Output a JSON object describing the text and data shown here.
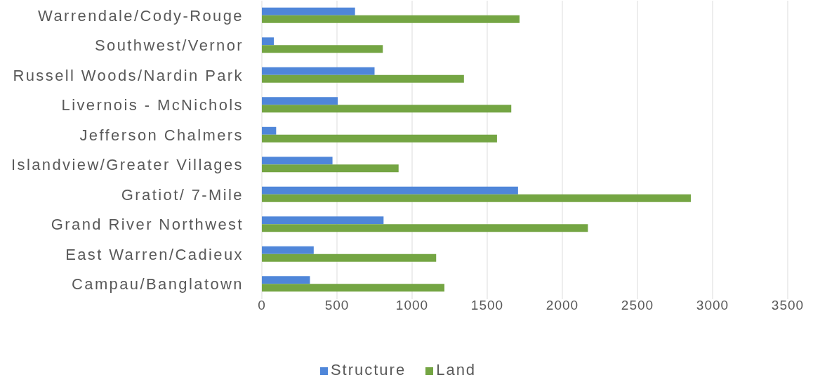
{
  "chart_data": {
    "type": "bar",
    "orientation": "horizontal",
    "categories": [
      "Warrendale/Cody-Rouge",
      "Southwest/Vernor",
      "Russell Woods/Nardin Park",
      "Livernois - McNichols",
      "Jefferson Chalmers",
      "Islandview/Greater Villages",
      "Gratiot/ 7-Mile",
      "Grand River Northwest",
      "East Warren/Cadieux",
      "Campau/Banglatown"
    ],
    "series": [
      {
        "name": "Structure",
        "color": "#4f86d9",
        "values": [
          620,
          80,
          750,
          505,
          95,
          470,
          1705,
          810,
          345,
          320
        ]
      },
      {
        "name": "Land",
        "color": "#74a543",
        "values": [
          1715,
          805,
          1345,
          1660,
          1565,
          910,
          2855,
          2170,
          1160,
          1215
        ]
      }
    ],
    "xlim": [
      0,
      3500
    ],
    "xticks": [
      0,
      500,
      1000,
      1500,
      2000,
      2500,
      3000,
      3500
    ],
    "grid": "x",
    "legend": "bottom"
  }
}
